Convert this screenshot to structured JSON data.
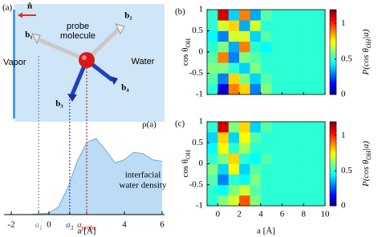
{
  "chart_data": [
    {
      "type": "area",
      "panel": "(a)",
      "x": [
        -2,
        -1,
        0,
        0.5,
        1,
        1.5,
        2,
        2.5,
        3,
        3.5,
        4,
        4.5,
        5,
        5.5,
        6
      ],
      "values": [
        0,
        0,
        0.02,
        0.1,
        0.35,
        0.7,
        0.95,
        1.0,
        0.85,
        0.68,
        0.72,
        0.82,
        0.8,
        0.72,
        0.7
      ],
      "color": "#bcdcf5",
      "line_color": "#6fa8dc",
      "xlim": [
        -2,
        6
      ],
      "ylim": [
        0,
        1.2
      ],
      "xticks": [
        -2,
        {
          "value": -0.55,
          "label": "a",
          "sub": "1",
          "color": "#888888"
        },
        0,
        {
          "value": 1.1,
          "label": "a",
          "sub": "3",
          "color": "#2a3fd0"
        },
        {
          "value": 2.0,
          "label": "a",
          "sub": "probe",
          "color": "#d02020"
        },
        4,
        6
      ],
      "xlabel": "a [Å]",
      "curve_label": "ρ(a)",
      "curve_note": [
        "interfacial",
        "water density"
      ],
      "diagram": {
        "vapor": "Vapor",
        "water": "Water",
        "probe": [
          "probe",
          "molecule"
        ],
        "normal": "n̂",
        "bonds": [
          "b₁",
          "b₂",
          "b₃",
          "b₄"
        ]
      }
    },
    {
      "type": "heatmap",
      "panel": "(b)",
      "xbins": [
        -1,
        0,
        1,
        2,
        3,
        4,
        5,
        6,
        7,
        8,
        9,
        10
      ],
      "ybins": [
        -1,
        -0.75,
        -0.5,
        -0.25,
        0,
        0.25,
        0.5,
        0.75,
        1
      ],
      "values": [
        [
          0.5,
          0.1,
          0.9,
          0.8,
          0.3,
          0.6,
          0.5,
          0.5,
          0.5,
          0.5,
          0.5
        ],
        [
          0.55,
          0.3,
          0.8,
          0.6,
          0.4,
          0.55,
          0.5,
          0.5,
          0.5,
          0.5,
          0.5
        ],
        [
          0.6,
          0.6,
          0.5,
          0.4,
          0.6,
          0.5,
          0.5,
          0.5,
          0.5,
          0.5,
          0.5
        ],
        [
          0.55,
          0.9,
          0.3,
          0.6,
          0.55,
          0.5,
          0.5,
          0.5,
          0.5,
          0.5,
          0.5
        ],
        [
          0.5,
          0.6,
          0.35,
          0.9,
          0.5,
          0.45,
          0.5,
          0.5,
          0.5,
          0.5,
          0.5
        ],
        [
          0.45,
          0.3,
          0.7,
          0.7,
          0.4,
          0.55,
          0.5,
          0.5,
          0.5,
          0.5,
          0.5
        ],
        [
          0.5,
          0.7,
          0.8,
          0.35,
          0.7,
          0.5,
          0.5,
          0.5,
          0.5,
          0.5,
          0.5
        ],
        [
          0.5,
          1.1,
          0.4,
          0.9,
          0.35,
          0.55,
          0.5,
          0.5,
          0.5,
          0.5,
          0.5
        ]
      ],
      "xlim": [
        -1,
        10
      ],
      "ylim": [
        -1,
        1
      ],
      "xticks": [
        0,
        2,
        4,
        6,
        8,
        10
      ],
      "yticks": [
        -1,
        -0.5,
        0,
        0.5,
        1
      ],
      "show_xtick_labels": false,
      "ylabel": {
        "text": "cos θ",
        "sub": "OH"
      },
      "colormap": "jet",
      "clim": [
        0,
        1.2
      ],
      "cticks": [
        0,
        0.5,
        1
      ],
      "colorbar_label": {
        "text": "P(cos θ",
        "sub": "OH",
        "tail": "|a)"
      }
    },
    {
      "type": "heatmap",
      "panel": "(c)",
      "xbins": [
        -1,
        0,
        1,
        2,
        3,
        4,
        5,
        6,
        7,
        8,
        9,
        10
      ],
      "ybins": [
        -1,
        -0.75,
        -0.5,
        -0.25,
        0,
        0.25,
        0.5,
        0.75,
        1
      ],
      "values": [
        [
          0.5,
          0.6,
          0.7,
          0.95,
          0.6,
          0.5,
          0.5,
          0.5,
          0.5,
          0.5,
          0.5
        ],
        [
          0.5,
          0.45,
          0.6,
          0.7,
          0.55,
          0.5,
          0.5,
          0.5,
          0.5,
          0.5,
          0.5
        ],
        [
          0.55,
          0.3,
          0.5,
          0.45,
          0.6,
          0.5,
          0.5,
          0.5,
          0.5,
          0.5,
          0.5
        ],
        [
          0.6,
          0.4,
          0.75,
          0.4,
          0.55,
          0.5,
          0.5,
          0.5,
          0.5,
          0.5,
          0.5
        ],
        [
          0.5,
          0.6,
          0.8,
          0.5,
          0.45,
          0.55,
          0.5,
          0.5,
          0.5,
          0.5,
          0.5
        ],
        [
          0.45,
          0.75,
          0.5,
          0.65,
          0.5,
          0.5,
          0.5,
          0.5,
          0.5,
          0.5,
          0.5
        ],
        [
          0.4,
          0.8,
          0.4,
          0.75,
          0.55,
          0.5,
          0.5,
          0.5,
          0.5,
          0.5,
          0.5
        ],
        [
          0.5,
          1.1,
          0.6,
          0.8,
          0.4,
          0.55,
          0.5,
          0.5,
          0.5,
          0.5,
          0.5
        ]
      ],
      "xlim": [
        -1,
        10
      ],
      "ylim": [
        -1,
        1
      ],
      "xticks": [
        0,
        2,
        4,
        6,
        8,
        10
      ],
      "yticks": [
        -1,
        -0.5,
        0,
        0.5,
        1
      ],
      "show_xtick_labels": true,
      "xlabel": "a [Å]",
      "ylabel": {
        "text": "cos θ",
        "sub": "OH"
      },
      "colormap": "jet",
      "clim": [
        0,
        1.2
      ],
      "cticks": [
        0,
        0.5,
        1
      ],
      "colorbar_label": {
        "text": "P(cos θ",
        "sub": "OH",
        "tail": "|a)"
      }
    }
  ]
}
